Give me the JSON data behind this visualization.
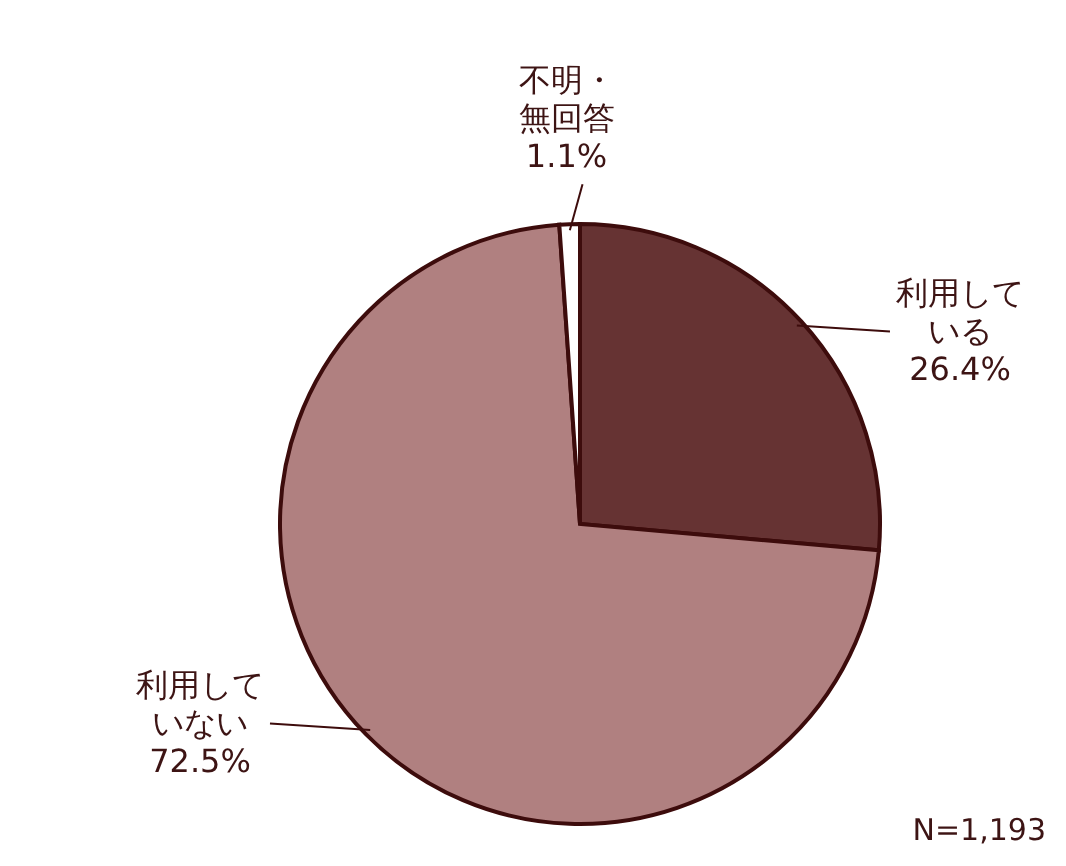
{
  "chart_data": {
    "type": "pie",
    "categories": [
      "利用している",
      "利用していない",
      "不明・無回答"
    ],
    "values": [
      26.4,
      72.5,
      1.1
    ],
    "colors": [
      "#663333",
      "#b08080",
      "#ffffff"
    ],
    "value_labels": [
      "26.4%",
      "72.5%",
      "1.1%"
    ],
    "annotations": [
      "N=1,193"
    ]
  }
}
